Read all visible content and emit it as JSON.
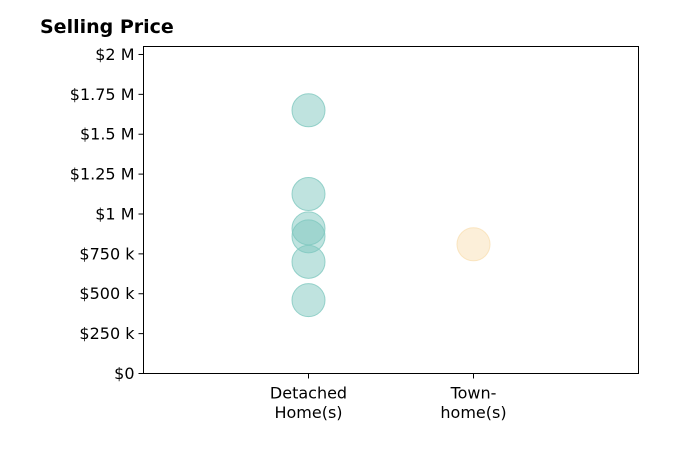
{
  "chart_data": {
    "type": "scatter",
    "title": "Selling Price",
    "xlabel": "",
    "ylabel": "",
    "categories": [
      {
        "lines": [
          "Detached",
          "Home(s)"
        ]
      },
      {
        "lines": [
          "Town-",
          "home(s)"
        ]
      }
    ],
    "yticks": [
      {
        "value": 0,
        "label": "$0"
      },
      {
        "value": 250000,
        "label": "$250 k"
      },
      {
        "value": 500000,
        "label": "$500 k"
      },
      {
        "value": 750000,
        "label": "$750 k"
      },
      {
        "value": 1000000,
        "label": "$1 M"
      },
      {
        "value": 1250000,
        "label": "$1.25 M"
      },
      {
        "value": 1500000,
        "label": "$1.5 M"
      },
      {
        "value": 1750000,
        "label": "$1.75 M"
      },
      {
        "value": 2000000,
        "label": "$2 M"
      }
    ],
    "ylim": [
      0,
      2050000
    ],
    "xlim": [
      -1,
      2
    ],
    "grid": false,
    "series": [
      {
        "category_index": 0,
        "color": "#7fc8bf",
        "values": [
          1650000,
          1125000,
          910000,
          860000,
          700000,
          460000
        ]
      },
      {
        "category_index": 1,
        "color": "#f9e0b4",
        "values": [
          810000
        ]
      }
    ]
  }
}
